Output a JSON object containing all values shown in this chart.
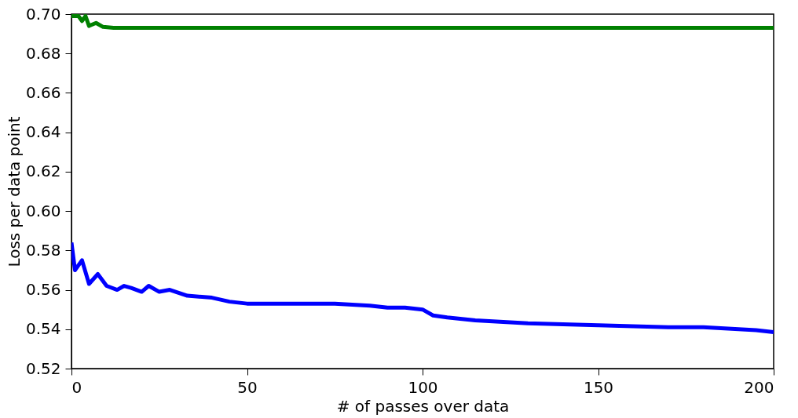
{
  "chart_data": {
    "type": "line",
    "xlabel": "# of passes over data",
    "ylabel": "Loss per data point",
    "xlim": [
      0,
      200
    ],
    "xticks": [
      0,
      50,
      100,
      150,
      200
    ],
    "ylim": [
      0.52,
      0.7
    ],
    "yticks": [
      0.52,
      0.54,
      0.56,
      0.58,
      {
        "value": 0.6,
        "label": "0.60"
      },
      0.62,
      0.64,
      0.66,
      0.68,
      {
        "value": 0.7,
        "label": "0.70"
      }
    ],
    "grid": false,
    "marker": "none",
    "line_style": "solid",
    "series": [
      {
        "color": "#008000",
        "x": [
          0,
          2,
          3,
          4,
          5,
          7,
          9,
          12,
          20,
          40,
          60,
          80,
          100,
          120,
          140,
          160,
          180,
          200
        ],
        "values": [
          0.699,
          0.699,
          0.6965,
          0.699,
          0.694,
          0.6955,
          0.6935,
          0.693,
          0.693,
          0.693,
          0.693,
          0.693,
          0.693,
          0.693,
          0.693,
          0.693,
          0.693,
          0.693
        ]
      },
      {
        "color": "#0000ff",
        "x": [
          0,
          1,
          3,
          5,
          7.5,
          10,
          13,
          15,
          17,
          20,
          22,
          25,
          28,
          33,
          40,
          45,
          50,
          55,
          60,
          65,
          75,
          85,
          90,
          95,
          100,
          103,
          107,
          115,
          120,
          130,
          140,
          150,
          160,
          170,
          180,
          190,
          195,
          200
        ],
        "values": [
          0.584,
          0.57,
          0.575,
          0.563,
          0.568,
          0.562,
          0.56,
          0.562,
          0.561,
          0.559,
          0.562,
          0.559,
          0.56,
          0.557,
          0.556,
          0.554,
          0.553,
          0.553,
          0.553,
          0.553,
          0.553,
          0.552,
          0.551,
          0.551,
          0.55,
          0.547,
          0.546,
          0.5445,
          0.544,
          0.543,
          0.5425,
          0.542,
          0.5415,
          0.541,
          0.541,
          0.54,
          0.5395,
          0.5385
        ]
      }
    ]
  }
}
